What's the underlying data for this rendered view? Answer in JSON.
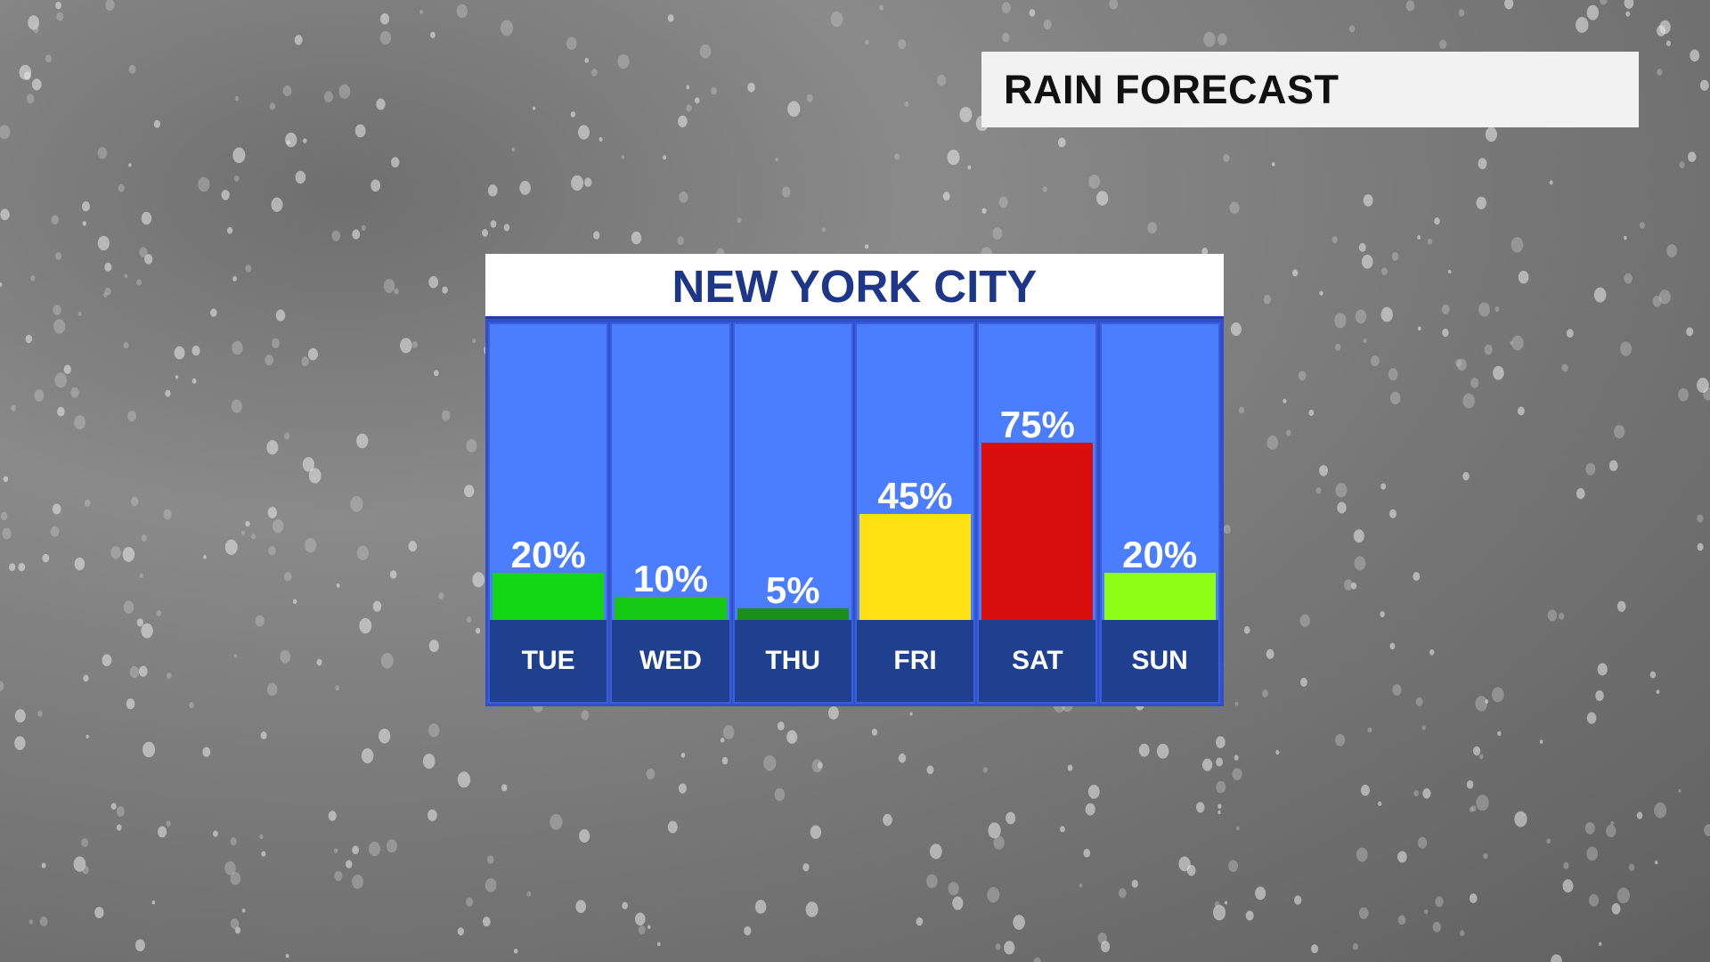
{
  "header": {
    "title": "RAIN FORECAST"
  },
  "chart_data": {
    "type": "bar",
    "title": "NEW YORK CITY",
    "categories": [
      "TUE",
      "WED",
      "THU",
      "FRI",
      "SAT",
      "SUN"
    ],
    "values": [
      20,
      10,
      5,
      45,
      75,
      20
    ],
    "value_labels": [
      "20%",
      "10%",
      "5%",
      "45%",
      "75%",
      "20%"
    ],
    "colors": [
      "#12d612",
      "#14c814",
      "#1a8f1a",
      "#ffe012",
      "#d90e0e",
      "#8cff14"
    ]
  }
}
